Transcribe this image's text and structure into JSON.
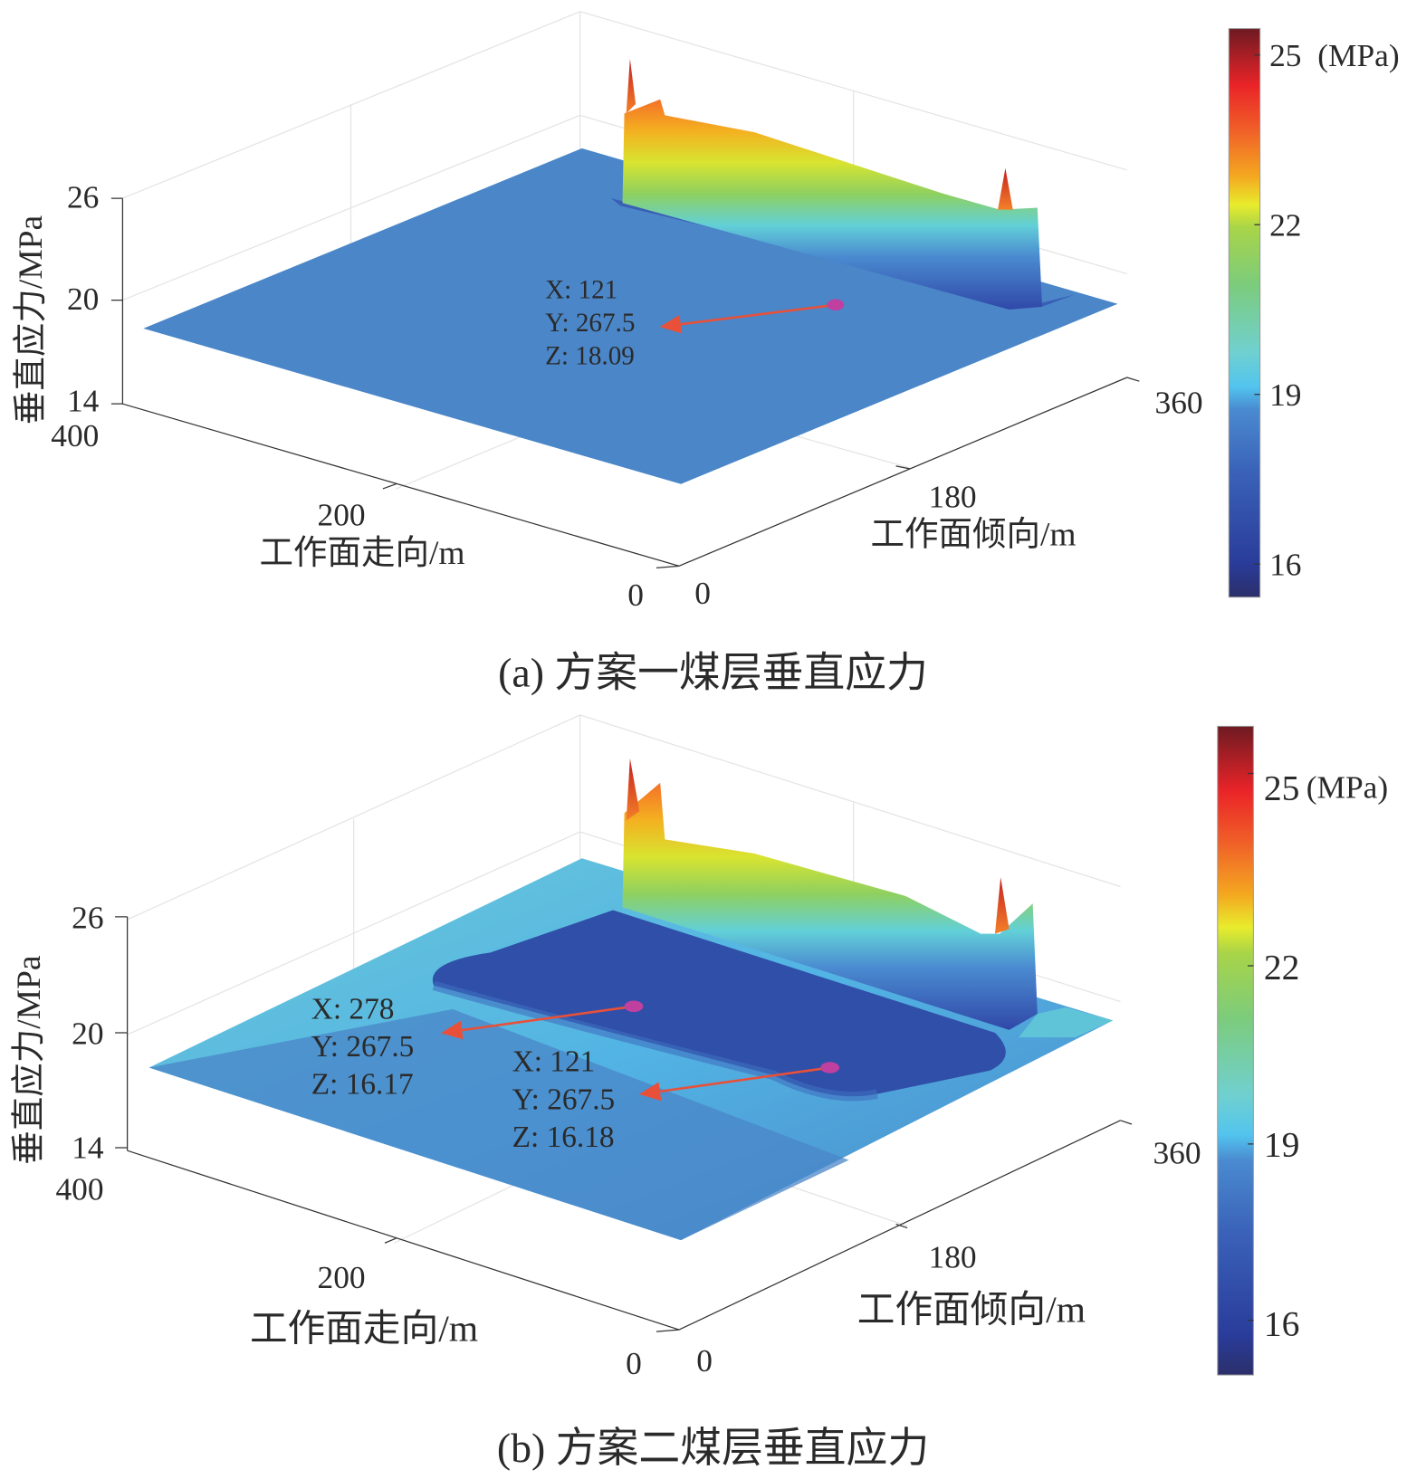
{
  "chart_data": [
    {
      "type": "surface",
      "caption": "(a) 方案一煤层垂直应力",
      "xlabel": "工作面走向/m",
      "ylabel": "工作面倾向/m",
      "zlabel": "垂直应力/MPa",
      "x_ticks": [
        "0",
        "200",
        "400"
      ],
      "y_ticks": [
        "0",
        "180",
        "360"
      ],
      "z_ticks": [
        "14",
        "20",
        "26"
      ],
      "zlim": [
        14,
        26
      ],
      "colorbar": {
        "colormap": "jet",
        "ticks": [
          "16",
          "19",
          "22",
          "25"
        ],
        "unit": "(MPa)",
        "range": [
          15.5,
          25.8
        ]
      },
      "datatips": [
        {
          "x": "X: 121",
          "y": "Y: 267.5",
          "z": "Z: 18.09"
        }
      ],
      "surface_base_color": "#4a86c8"
    },
    {
      "type": "surface",
      "caption": "(b) 方案二煤层垂直应力",
      "xlabel": "工作面走向/m",
      "ylabel": "工作面倾向/m",
      "zlabel": "垂直应力/MPa",
      "x_ticks": [
        "0",
        "200",
        "400"
      ],
      "y_ticks": [
        "0",
        "180",
        "360"
      ],
      "z_ticks": [
        "14",
        "20",
        "26"
      ],
      "zlim": [
        14,
        26
      ],
      "colorbar": {
        "colormap": "jet",
        "ticks": [
          "16",
          "19",
          "22",
          "25"
        ],
        "unit": "(MPa)",
        "range": [
          15.5,
          25.8
        ]
      },
      "datatips": [
        {
          "x": "X: 278",
          "y": "Y: 267.5",
          "z": "Z: 16.17"
        },
        {
          "x": "X: 121",
          "y": "Y: 267.5",
          "z": "Z: 16.18"
        }
      ],
      "surface_base_color": "#4a86c8",
      "basin_color": "#2f4fa8"
    }
  ],
  "colors": {
    "arrow": "#e8503a",
    "marker": "#c040a0"
  }
}
